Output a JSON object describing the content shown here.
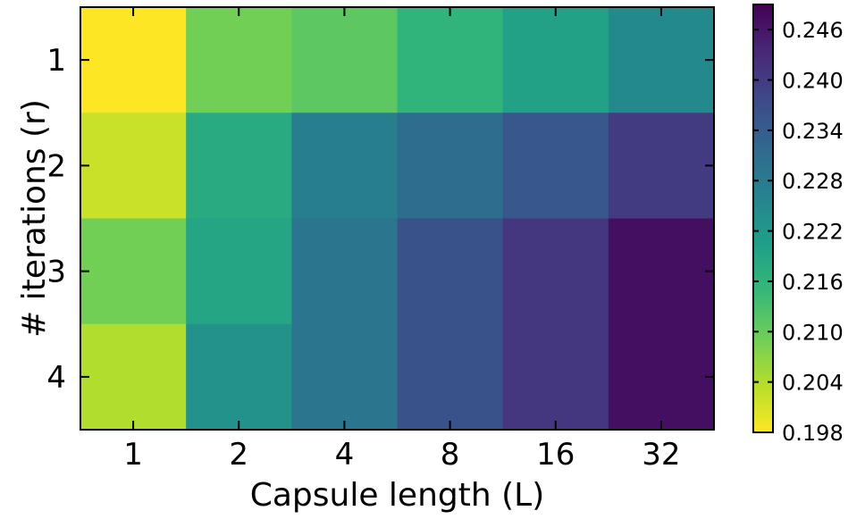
{
  "chart_data": {
    "type": "heatmap",
    "title": "",
    "xlabel": "Capsule length (L)",
    "ylabel": "# iterations (r)",
    "x_categories": [
      "1",
      "2",
      "4",
      "8",
      "16",
      "32"
    ],
    "y_categories": [
      "1",
      "2",
      "3",
      "4"
    ],
    "values": [
      [
        0.198,
        0.209,
        0.211,
        0.216,
        0.22,
        0.225
      ],
      [
        0.202,
        0.218,
        0.227,
        0.231,
        0.235,
        0.24
      ],
      [
        0.209,
        0.219,
        0.229,
        0.236,
        0.241,
        0.247
      ],
      [
        0.204,
        0.223,
        0.229,
        0.236,
        0.241,
        0.247
      ]
    ],
    "colorbar": {
      "min": 0.198,
      "max": 0.249,
      "ticks": [
        0.198,
        0.204,
        0.21,
        0.216,
        0.222,
        0.228,
        0.234,
        0.24,
        0.246
      ],
      "tick_labels": [
        "0.198",
        "0.204",
        "0.210",
        "0.216",
        "0.222",
        "0.228",
        "0.234",
        "0.240",
        "0.246"
      ],
      "reversed": true
    },
    "colormap": "viridis",
    "colormap_stops": [
      "#fde725",
      "#b5de2b",
      "#6ece58",
      "#35b779",
      "#1f9e89",
      "#26828e",
      "#31688e",
      "#3e4989",
      "#482878",
      "#440154"
    ],
    "grid": false
  }
}
